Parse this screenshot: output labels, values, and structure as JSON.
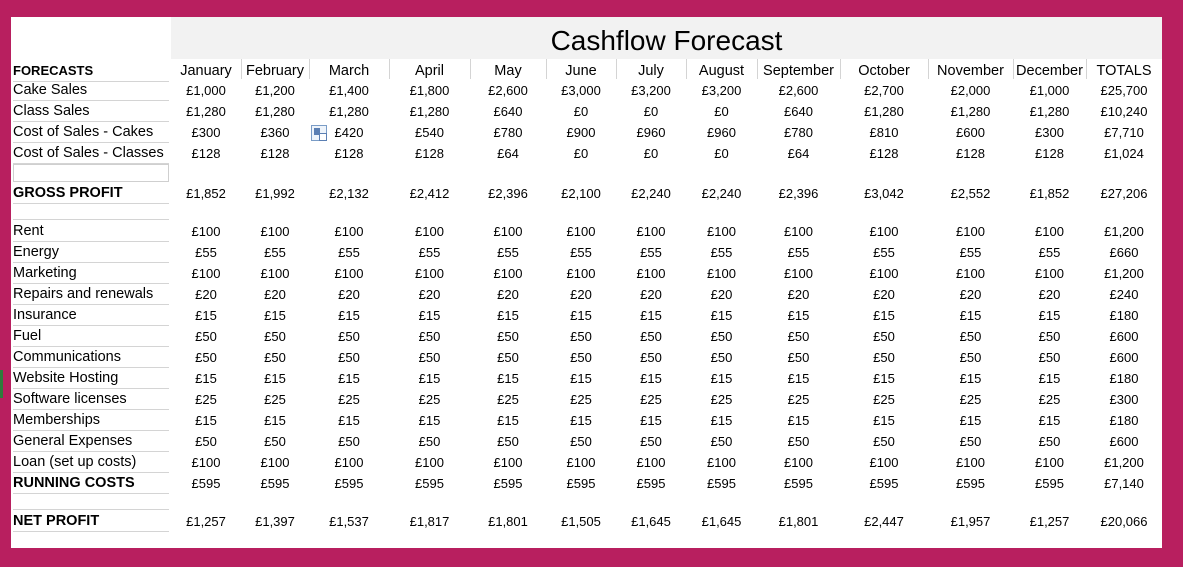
{
  "title": "Cashflow Forecast",
  "header_label": "FORECASTS",
  "months": [
    "January",
    "February",
    "March",
    "April",
    "May",
    "June",
    "July",
    "August",
    "September",
    "October",
    "November",
    "December",
    "TOTALS"
  ],
  "rows": [
    {
      "label": "Cake Sales",
      "bold": false,
      "values": [
        "£1,000",
        "£1,200",
        "£1,400",
        "£1,800",
        "£2,600",
        "£3,000",
        "£3,200",
        "£3,200",
        "£2,600",
        "£2,700",
        "£2,000",
        "£1,000",
        "£25,700"
      ]
    },
    {
      "label": "Class Sales",
      "bold": false,
      "values": [
        "£1,280",
        "£1,280",
        "£1,280",
        "£1,280",
        "£640",
        "£0",
        "£0",
        "£0",
        "£640",
        "£1,280",
        "£1,280",
        "£1,280",
        "£10,240"
      ]
    },
    {
      "label": "Cost of Sales - Cakes",
      "bold": false,
      "values": [
        "£300",
        "£360",
        "£420",
        "£540",
        "£780",
        "£900",
        "£960",
        "£960",
        "£780",
        "£810",
        "£600",
        "£300",
        "£7,710"
      ]
    },
    {
      "label": "Cost of Sales - Classes",
      "bold": false,
      "values": [
        "£128",
        "£128",
        "£128",
        "£128",
        "£64",
        "£0",
        "£0",
        "£0",
        "£64",
        "£128",
        "£128",
        "£128",
        "£1,024"
      ]
    },
    {
      "label": "GROSS PROFIT",
      "bold": true,
      "values": [
        "£1,852",
        "£1,992",
        "£2,132",
        "£2,412",
        "£2,396",
        "£2,100",
        "£2,240",
        "£2,240",
        "£2,396",
        "£3,042",
        "£2,552",
        "£1,852",
        "£27,206"
      ]
    },
    {
      "label": "Rent",
      "bold": false,
      "values": [
        "£100",
        "£100",
        "£100",
        "£100",
        "£100",
        "£100",
        "£100",
        "£100",
        "£100",
        "£100",
        "£100",
        "£100",
        "£1,200"
      ]
    },
    {
      "label": "Energy",
      "bold": false,
      "values": [
        "£55",
        "£55",
        "£55",
        "£55",
        "£55",
        "£55",
        "£55",
        "£55",
        "£55",
        "£55",
        "£55",
        "£55",
        "£660"
      ]
    },
    {
      "label": "Marketing",
      "bold": false,
      "values": [
        "£100",
        "£100",
        "£100",
        "£100",
        "£100",
        "£100",
        "£100",
        "£100",
        "£100",
        "£100",
        "£100",
        "£100",
        "£1,200"
      ]
    },
    {
      "label": "Repairs and renewals",
      "bold": false,
      "values": [
        "£20",
        "£20",
        "£20",
        "£20",
        "£20",
        "£20",
        "£20",
        "£20",
        "£20",
        "£20",
        "£20",
        "£20",
        "£240"
      ]
    },
    {
      "label": "Insurance",
      "bold": false,
      "values": [
        "£15",
        "£15",
        "£15",
        "£15",
        "£15",
        "£15",
        "£15",
        "£15",
        "£15",
        "£15",
        "£15",
        "£15",
        "£180"
      ]
    },
    {
      "label": "Fuel",
      "bold": false,
      "values": [
        "£50",
        "£50",
        "£50",
        "£50",
        "£50",
        "£50",
        "£50",
        "£50",
        "£50",
        "£50",
        "£50",
        "£50",
        "£600"
      ]
    },
    {
      "label": "Communications",
      "bold": false,
      "values": [
        "£50",
        "£50",
        "£50",
        "£50",
        "£50",
        "£50",
        "£50",
        "£50",
        "£50",
        "£50",
        "£50",
        "£50",
        "£600"
      ]
    },
    {
      "label": "Website Hosting",
      "bold": false,
      "values": [
        "£15",
        "£15",
        "£15",
        "£15",
        "£15",
        "£15",
        "£15",
        "£15",
        "£15",
        "£15",
        "£15",
        "£15",
        "£180"
      ]
    },
    {
      "label": "Software licenses",
      "bold": false,
      "values": [
        "£25",
        "£25",
        "£25",
        "£25",
        "£25",
        "£25",
        "£25",
        "£25",
        "£25",
        "£25",
        "£25",
        "£25",
        "£300"
      ]
    },
    {
      "label": "Memberships",
      "bold": false,
      "values": [
        "£15",
        "£15",
        "£15",
        "£15",
        "£15",
        "£15",
        "£15",
        "£15",
        "£15",
        "£15",
        "£15",
        "£15",
        "£180"
      ]
    },
    {
      "label": "General Expenses",
      "bold": false,
      "values": [
        "£50",
        "£50",
        "£50",
        "£50",
        "£50",
        "£50",
        "£50",
        "£50",
        "£50",
        "£50",
        "£50",
        "£50",
        "£600"
      ]
    },
    {
      "label": "Loan (set up costs)",
      "bold": false,
      "values": [
        "£100",
        "£100",
        "£100",
        "£100",
        "£100",
        "£100",
        "£100",
        "£100",
        "£100",
        "£100",
        "£100",
        "£100",
        "£1,200"
      ]
    },
    {
      "label": "RUNNING COSTS",
      "bold": true,
      "values": [
        "£595",
        "£595",
        "£595",
        "£595",
        "£595",
        "£595",
        "£595",
        "£595",
        "£595",
        "£595",
        "£595",
        "£595",
        "£7,140"
      ]
    },
    {
      "label": "NET PROFIT",
      "bold": true,
      "values": [
        "£1,257",
        "£1,397",
        "£1,537",
        "£1,817",
        "£1,801",
        "£1,505",
        "£1,645",
        "£1,645",
        "£1,801",
        "£2,447",
        "£1,957",
        "£1,257",
        "£20,066"
      ]
    }
  ],
  "colors": {
    "border": "#b81f5f",
    "title_band": "#f2f2f2"
  }
}
